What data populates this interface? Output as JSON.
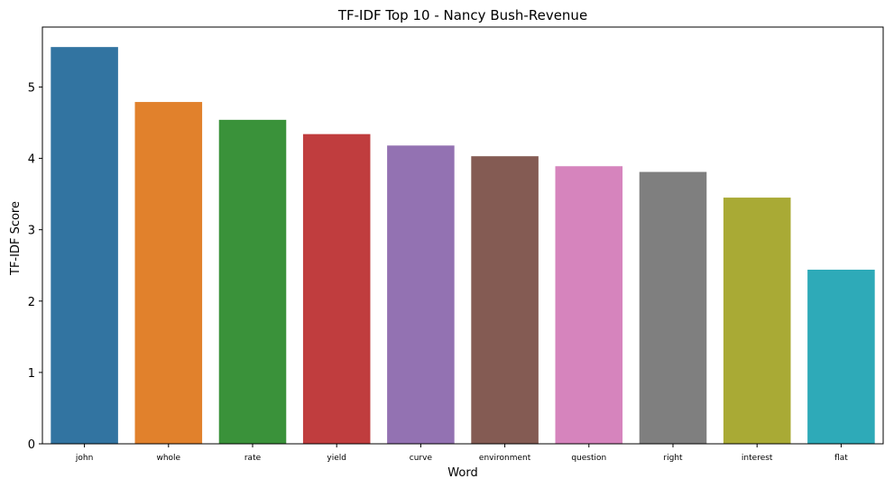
{
  "chart_data": {
    "type": "bar",
    "title": "TF-IDF Top 10 - Nancy Bush-Revenue",
    "xlabel": "Word",
    "ylabel": "TF-IDF Score",
    "categories": [
      "john",
      "whole",
      "rate",
      "yield",
      "curve",
      "environment",
      "question",
      "right",
      "interest",
      "flat"
    ],
    "values": [
      5.56,
      4.79,
      4.54,
      4.34,
      4.18,
      4.03,
      3.89,
      3.81,
      3.45,
      2.44
    ],
    "colors": [
      "#3274a1",
      "#e1812c",
      "#3a923a",
      "#c03d3e",
      "#9372b2",
      "#845b53",
      "#d684bd",
      "#7f7f7f",
      "#a9aa35",
      "#2eaab8"
    ],
    "ylim": [
      0,
      5.84
    ],
    "yticks": [
      0,
      1,
      2,
      3,
      4,
      5
    ],
    "grid": false,
    "legend": "none"
  }
}
